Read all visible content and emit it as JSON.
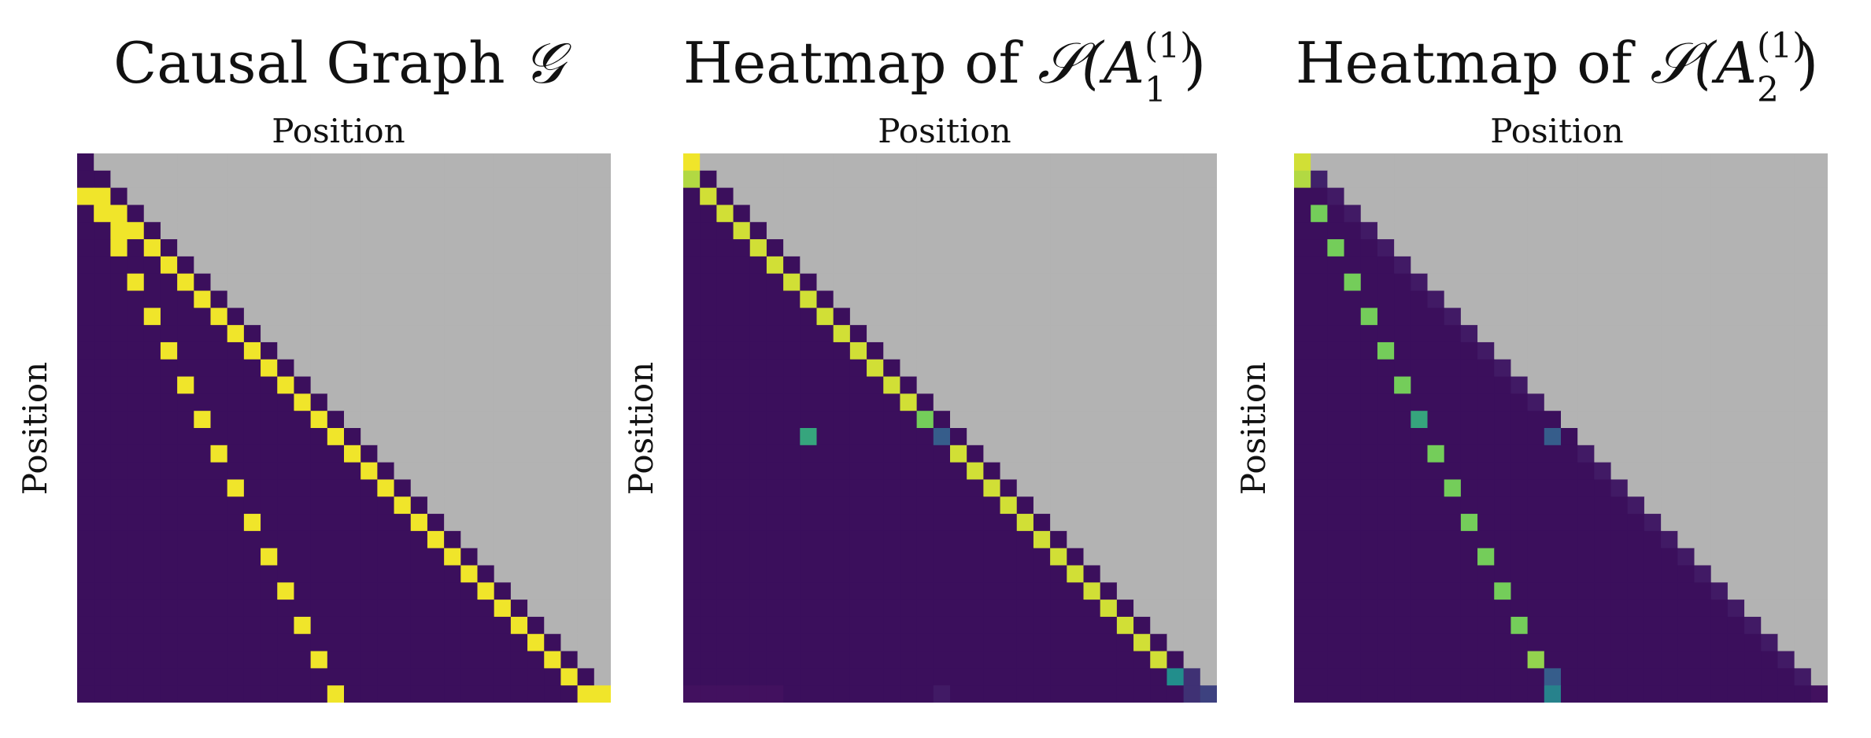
{
  "chart_data": [
    {
      "type": "heatmap",
      "title": "Causal Graph 𝒢",
      "title_prefix": "Causal Graph ",
      "title_symbol": "𝒢",
      "xlabel": "Position",
      "ylabel": "Position",
      "n": 32,
      "mask": "upper-triangle",
      "cells": [
        {
          "r": 0,
          "c": 0,
          "v": 0
        },
        {
          "r": 1,
          "c": 0,
          "v": 0
        },
        {
          "r": 2,
          "c": 0,
          "v": 1
        },
        {
          "r": 2,
          "c": 1,
          "v": 1
        },
        {
          "r": 3,
          "c": 1,
          "v": 1
        },
        {
          "r": 3,
          "c": 2,
          "v": 1
        },
        {
          "r": 4,
          "c": 2,
          "v": 1
        },
        {
          "r": 4,
          "c": 3,
          "v": 1
        },
        {
          "r": 5,
          "c": 2,
          "v": 1
        },
        {
          "r": 5,
          "c": 4,
          "v": 1
        },
        {
          "r": 6,
          "c": 5,
          "v": 1
        },
        {
          "r": 7,
          "c": 3,
          "v": 1
        },
        {
          "r": 7,
          "c": 6,
          "v": 1
        },
        {
          "r": 8,
          "c": 7,
          "v": 1
        },
        {
          "r": 9,
          "c": 4,
          "v": 1
        },
        {
          "r": 9,
          "c": 8,
          "v": 1
        },
        {
          "r": 10,
          "c": 9,
          "v": 1
        },
        {
          "r": 11,
          "c": 5,
          "v": 1
        },
        {
          "r": 11,
          "c": 10,
          "v": 1
        },
        {
          "r": 12,
          "c": 11,
          "v": 1
        },
        {
          "r": 13,
          "c": 6,
          "v": 1
        },
        {
          "r": 13,
          "c": 12,
          "v": 1
        },
        {
          "r": 14,
          "c": 13,
          "v": 1
        },
        {
          "r": 15,
          "c": 7,
          "v": 1
        },
        {
          "r": 15,
          "c": 14,
          "v": 1
        },
        {
          "r": 16,
          "c": 15,
          "v": 1
        },
        {
          "r": 17,
          "c": 8,
          "v": 1
        },
        {
          "r": 17,
          "c": 16,
          "v": 1
        },
        {
          "r": 18,
          "c": 17,
          "v": 1
        },
        {
          "r": 19,
          "c": 9,
          "v": 1
        },
        {
          "r": 19,
          "c": 18,
          "v": 1
        },
        {
          "r": 20,
          "c": 19,
          "v": 1
        },
        {
          "r": 21,
          "c": 10,
          "v": 1
        },
        {
          "r": 21,
          "c": 20,
          "v": 1
        },
        {
          "r": 22,
          "c": 21,
          "v": 1
        },
        {
          "r": 23,
          "c": 11,
          "v": 1
        },
        {
          "r": 23,
          "c": 22,
          "v": 1
        },
        {
          "r": 24,
          "c": 23,
          "v": 1
        },
        {
          "r": 25,
          "c": 12,
          "v": 1
        },
        {
          "r": 25,
          "c": 24,
          "v": 1
        },
        {
          "r": 26,
          "c": 25,
          "v": 1
        },
        {
          "r": 27,
          "c": 13,
          "v": 1
        },
        {
          "r": 27,
          "c": 26,
          "v": 1
        },
        {
          "r": 28,
          "c": 27,
          "v": 1
        },
        {
          "r": 29,
          "c": 14,
          "v": 1
        },
        {
          "r": 29,
          "c": 28,
          "v": 1
        },
        {
          "r": 30,
          "c": 29,
          "v": 1
        },
        {
          "r": 31,
          "c": 15,
          "v": 1
        },
        {
          "r": 31,
          "c": 30,
          "v": 1
        },
        {
          "r": 31,
          "c": 31,
          "v": 1
        }
      ]
    },
    {
      "type": "heatmap",
      "title": "Heatmap of 𝒮(A₁⁽¹⁾)",
      "title_prefix": "Heatmap of ",
      "title_func": "𝒮(A",
      "title_sup": "(1)",
      "title_sub": "1",
      "title_close": ")",
      "xlabel": "Position",
      "ylabel": "Position",
      "n": 32,
      "mask": "upper-triangle",
      "cells": [
        {
          "r": 0,
          "c": 0,
          "v": 1.0
        },
        {
          "r": 1,
          "c": 0,
          "v": 0.9
        },
        {
          "r": 2,
          "c": 1,
          "v": 0.95
        },
        {
          "r": 3,
          "c": 2,
          "v": 0.95
        },
        {
          "r": 4,
          "c": 3,
          "v": 0.95
        },
        {
          "r": 5,
          "c": 4,
          "v": 0.95
        },
        {
          "r": 6,
          "c": 5,
          "v": 0.95
        },
        {
          "r": 7,
          "c": 6,
          "v": 0.95
        },
        {
          "r": 8,
          "c": 7,
          "v": 0.95
        },
        {
          "r": 9,
          "c": 8,
          "v": 0.95
        },
        {
          "r": 10,
          "c": 9,
          "v": 0.95
        },
        {
          "r": 11,
          "c": 10,
          "v": 0.95
        },
        {
          "r": 12,
          "c": 11,
          "v": 0.95
        },
        {
          "r": 13,
          "c": 12,
          "v": 0.95
        },
        {
          "r": 14,
          "c": 13,
          "v": 0.95
        },
        {
          "r": 15,
          "c": 14,
          "v": 0.8
        },
        {
          "r": 16,
          "c": 15,
          "v": 0.3
        },
        {
          "r": 16,
          "c": 7,
          "v": 0.6
        },
        {
          "r": 17,
          "c": 16,
          "v": 0.95
        },
        {
          "r": 18,
          "c": 17,
          "v": 0.95
        },
        {
          "r": 19,
          "c": 18,
          "v": 0.95
        },
        {
          "r": 20,
          "c": 19,
          "v": 0.95
        },
        {
          "r": 21,
          "c": 20,
          "v": 0.95
        },
        {
          "r": 22,
          "c": 21,
          "v": 0.95
        },
        {
          "r": 23,
          "c": 22,
          "v": 0.95
        },
        {
          "r": 24,
          "c": 23,
          "v": 0.95
        },
        {
          "r": 25,
          "c": 24,
          "v": 0.95
        },
        {
          "r": 26,
          "c": 25,
          "v": 0.95
        },
        {
          "r": 27,
          "c": 26,
          "v": 0.95
        },
        {
          "r": 28,
          "c": 27,
          "v": 0.95
        },
        {
          "r": 29,
          "c": 28,
          "v": 0.95
        },
        {
          "r": 30,
          "c": 29,
          "v": 0.5
        },
        {
          "r": 30,
          "c": 30,
          "v": 0.15
        },
        {
          "r": 31,
          "c": 0,
          "v": 0.05
        },
        {
          "r": 31,
          "c": 1,
          "v": 0.05
        },
        {
          "r": 31,
          "c": 2,
          "v": 0.05
        },
        {
          "r": 31,
          "c": 3,
          "v": 0.05
        },
        {
          "r": 31,
          "c": 4,
          "v": 0.05
        },
        {
          "r": 31,
          "c": 5,
          "v": 0.05
        },
        {
          "r": 31,
          "c": 15,
          "v": 0.08
        },
        {
          "r": 31,
          "c": 30,
          "v": 0.15
        },
        {
          "r": 31,
          "c": 31,
          "v": 0.2
        }
      ]
    },
    {
      "type": "heatmap",
      "title": "Heatmap of 𝒮(A₂⁽¹⁾)",
      "title_prefix": "Heatmap of ",
      "title_func": "𝒮(A",
      "title_sup": "(1)",
      "title_sub": "2",
      "title_close": ")",
      "xlabel": "Position",
      "ylabel": "Position",
      "n": 32,
      "mask": "upper-triangle",
      "cells": [
        {
          "r": 0,
          "c": 0,
          "v": 0.95
        },
        {
          "r": 1,
          "c": 0,
          "v": 0.9
        },
        {
          "r": 1,
          "c": 1,
          "v": 0.1
        },
        {
          "r": 2,
          "c": 2,
          "v": 0.08
        },
        {
          "r": 3,
          "c": 1,
          "v": 0.8
        },
        {
          "r": 3,
          "c": 3,
          "v": 0.08
        },
        {
          "r": 5,
          "c": 2,
          "v": 0.8
        },
        {
          "r": 7,
          "c": 3,
          "v": 0.8
        },
        {
          "r": 9,
          "c": 4,
          "v": 0.8
        },
        {
          "r": 11,
          "c": 5,
          "v": 0.8
        },
        {
          "r": 13,
          "c": 6,
          "v": 0.8
        },
        {
          "r": 15,
          "c": 7,
          "v": 0.6
        },
        {
          "r": 17,
          "c": 8,
          "v": 0.8
        },
        {
          "r": 19,
          "c": 9,
          "v": 0.8
        },
        {
          "r": 21,
          "c": 10,
          "v": 0.8
        },
        {
          "r": 23,
          "c": 11,
          "v": 0.8
        },
        {
          "r": 25,
          "c": 12,
          "v": 0.8
        },
        {
          "r": 27,
          "c": 13,
          "v": 0.8
        },
        {
          "r": 29,
          "c": 14,
          "v": 0.85
        },
        {
          "r": 30,
          "c": 15,
          "v": 0.3
        },
        {
          "r": 31,
          "c": 15,
          "v": 0.45
        },
        {
          "r": 16,
          "c": 15,
          "v": 0.3
        },
        {
          "r": 4,
          "c": 4,
          "v": 0.08
        },
        {
          "r": 5,
          "c": 5,
          "v": 0.08
        },
        {
          "r": 6,
          "c": 6,
          "v": 0.08
        },
        {
          "r": 7,
          "c": 7,
          "v": 0.08
        },
        {
          "r": 8,
          "c": 8,
          "v": 0.08
        },
        {
          "r": 9,
          "c": 9,
          "v": 0.08
        },
        {
          "r": 10,
          "c": 10,
          "v": 0.08
        },
        {
          "r": 11,
          "c": 11,
          "v": 0.08
        },
        {
          "r": 12,
          "c": 12,
          "v": 0.08
        },
        {
          "r": 13,
          "c": 13,
          "v": 0.08
        },
        {
          "r": 14,
          "c": 14,
          "v": 0.08
        },
        {
          "r": 17,
          "c": 17,
          "v": 0.08
        },
        {
          "r": 18,
          "c": 18,
          "v": 0.08
        },
        {
          "r": 19,
          "c": 19,
          "v": 0.08
        },
        {
          "r": 20,
          "c": 20,
          "v": 0.08
        },
        {
          "r": 21,
          "c": 21,
          "v": 0.08
        },
        {
          "r": 22,
          "c": 22,
          "v": 0.08
        },
        {
          "r": 23,
          "c": 23,
          "v": 0.08
        },
        {
          "r": 24,
          "c": 24,
          "v": 0.08
        },
        {
          "r": 25,
          "c": 25,
          "v": 0.08
        },
        {
          "r": 26,
          "c": 26,
          "v": 0.08
        },
        {
          "r": 27,
          "c": 27,
          "v": 0.08
        },
        {
          "r": 28,
          "c": 28,
          "v": 0.08
        },
        {
          "r": 29,
          "c": 29,
          "v": 0.08
        },
        {
          "r": 30,
          "c": 30,
          "v": 0.08
        },
        {
          "r": 31,
          "c": 31,
          "v": 0.05
        }
      ]
    }
  ],
  "colors": {
    "low": "#440154",
    "background": "#3b0f5c",
    "masked": "#b3b3b3",
    "high": "#fde725"
  }
}
